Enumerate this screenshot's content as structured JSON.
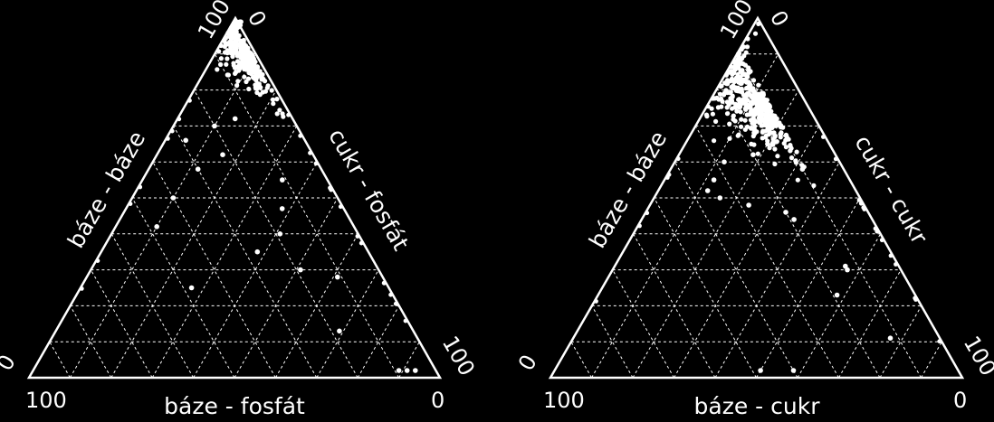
{
  "colors": {
    "background": "#000000",
    "foreground": "#ffffff"
  },
  "chart_data": [
    {
      "type": "ternary-scatter",
      "grid": true,
      "grid_step": 10,
      "left_axis_title": "báze - báze",
      "right_axis_title": "cukr - fosfát",
      "bottom_axis_title": "báze - fosfát",
      "tick_labels": {
        "top_left": "100",
        "top_right": "0",
        "left": "0",
        "right": "100",
        "bottom_left": "100",
        "bottom_right": "0"
      },
      "cluster": {
        "bottom": 90,
        "left": 1,
        "right": 9,
        "spread_bottom": 6,
        "spread_lr": 4,
        "count": 280
      },
      "points": [
        {
          "bottom": 62,
          "left": 22,
          "right": 16
        },
        {
          "bottom": 58,
          "left": 30,
          "right": 12
        },
        {
          "bottom": 66,
          "left": 29,
          "right": 5
        },
        {
          "bottom": 50,
          "left": 40,
          "right": 10
        },
        {
          "bottom": 42,
          "left": 48,
          "right": 10
        },
        {
          "bottom": 47,
          "left": 15,
          "right": 38
        },
        {
          "bottom": 40,
          "left": 19,
          "right": 41
        },
        {
          "bottom": 35,
          "left": 27,
          "right": 38
        },
        {
          "bottom": 30,
          "left": 19,
          "right": 51
        },
        {
          "bottom": 28,
          "left": 11,
          "right": 61
        },
        {
          "bottom": 13,
          "left": 18,
          "right": 69
        },
        {
          "bottom": 70,
          "left": 20,
          "right": 10
        },
        {
          "bottom": 72,
          "left": 14,
          "right": 14
        },
        {
          "bottom": 55,
          "left": 11,
          "right": 34
        },
        {
          "bottom": 25,
          "left": 48,
          "right": 27
        },
        {
          "bottom": 2,
          "left": 9,
          "right": 89
        },
        {
          "bottom": 2,
          "left": 7,
          "right": 91
        },
        {
          "bottom": 2,
          "left": 5,
          "right": 93
        }
      ]
    },
    {
      "type": "ternary-scatter",
      "grid": true,
      "grid_step": 10,
      "left_axis_title": "báze - báze",
      "right_axis_title": "cukr - cukr",
      "bottom_axis_title": "báze - cukr",
      "tick_labels": {
        "top_left": "100",
        "top_right": "0",
        "left": "0",
        "right": "100",
        "bottom_left": "100",
        "bottom_right": "0"
      },
      "cluster": {
        "bottom": 76,
        "left": 9,
        "right": 15,
        "spread_bottom": 7,
        "spread_lr": 7,
        "count": 420
      },
      "points": [
        {
          "bottom": 55,
          "left": 33,
          "right": 12
        },
        {
          "bottom": 52,
          "left": 36,
          "right": 12
        },
        {
          "bottom": 50,
          "left": 34,
          "right": 16
        },
        {
          "bottom": 46,
          "left": 20,
          "right": 34
        },
        {
          "bottom": 44,
          "left": 19,
          "right": 37
        },
        {
          "bottom": 30,
          "left": 13,
          "right": 57
        },
        {
          "bottom": 31,
          "left": 13,
          "right": 56
        },
        {
          "bottom": 23,
          "left": 19,
          "right": 58
        },
        {
          "bottom": 11,
          "left": 12,
          "right": 77
        },
        {
          "bottom": 60,
          "left": 28,
          "right": 12
        },
        {
          "bottom": 62,
          "left": 20,
          "right": 18
        },
        {
          "bottom": 65,
          "left": 15,
          "right": 20
        },
        {
          "bottom": 58,
          "left": 10,
          "right": 32
        },
        {
          "bottom": 48,
          "left": 28,
          "right": 24
        },
        {
          "bottom": 2,
          "left": 40,
          "right": 58
        },
        {
          "bottom": 2,
          "left": 48,
          "right": 50
        }
      ]
    }
  ]
}
